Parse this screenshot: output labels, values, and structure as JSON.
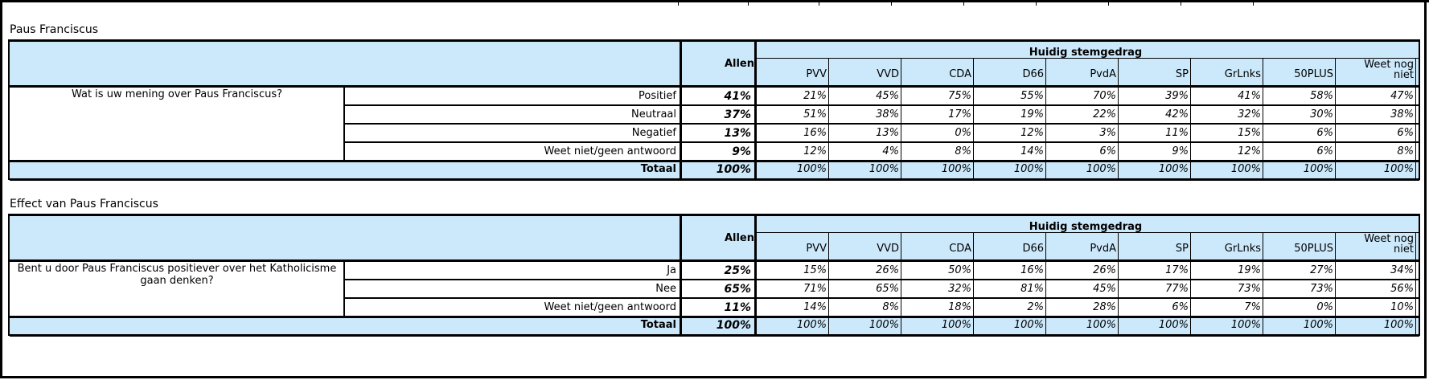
{
  "columns": [
    "PVV",
    "VVD",
    "CDA",
    "D66",
    "PvdA",
    "SP",
    "GrLnks",
    "50PLUS",
    "Weet nog niet"
  ],
  "allen_label": "Allen",
  "group_label": "Huidig stemgedrag",
  "total_label": "Totaal",
  "sections": [
    {
      "title": "Paus Franciscus",
      "question": "Wat is uw mening over Paus Franciscus?",
      "rows": [
        {
          "label": "Positief",
          "allen": "41%",
          "values": [
            "21%",
            "45%",
            "75%",
            "55%",
            "70%",
            "39%",
            "41%",
            "58%",
            "47%"
          ]
        },
        {
          "label": "Neutraal",
          "allen": "37%",
          "values": [
            "51%",
            "38%",
            "17%",
            "19%",
            "22%",
            "42%",
            "32%",
            "30%",
            "38%"
          ]
        },
        {
          "label": "Negatief",
          "allen": "13%",
          "values": [
            "16%",
            "13%",
            "0%",
            "12%",
            "3%",
            "11%",
            "15%",
            "6%",
            "6%"
          ]
        },
        {
          "label": "Weet niet/geen antwoord",
          "allen": "9%",
          "values": [
            "12%",
            "4%",
            "8%",
            "14%",
            "6%",
            "9%",
            "12%",
            "6%",
            "8%"
          ]
        }
      ],
      "total": {
        "allen": "100%",
        "values": [
          "100%",
          "100%",
          "100%",
          "100%",
          "100%",
          "100%",
          "100%",
          "100%",
          "100%"
        ]
      }
    },
    {
      "title": "Effect van Paus Franciscus",
      "question": "Bent u door Paus Franciscus positiever over het Katholicisme gaan denken?",
      "rows": [
        {
          "label": "Ja",
          "allen": "25%",
          "values": [
            "15%",
            "26%",
            "50%",
            "16%",
            "26%",
            "17%",
            "19%",
            "27%",
            "34%"
          ]
        },
        {
          "label": "Nee",
          "allen": "65%",
          "values": [
            "71%",
            "65%",
            "32%",
            "81%",
            "45%",
            "77%",
            "73%",
            "73%",
            "56%"
          ]
        },
        {
          "label": "Weet niet/geen antwoord",
          "allen": "11%",
          "values": [
            "14%",
            "8%",
            "18%",
            "2%",
            "28%",
            "6%",
            "7%",
            "0%",
            "10%"
          ]
        }
      ],
      "total": {
        "allen": "100%",
        "values": [
          "100%",
          "100%",
          "100%",
          "100%",
          "100%",
          "100%",
          "100%",
          "100%",
          "100%"
        ]
      }
    }
  ]
}
